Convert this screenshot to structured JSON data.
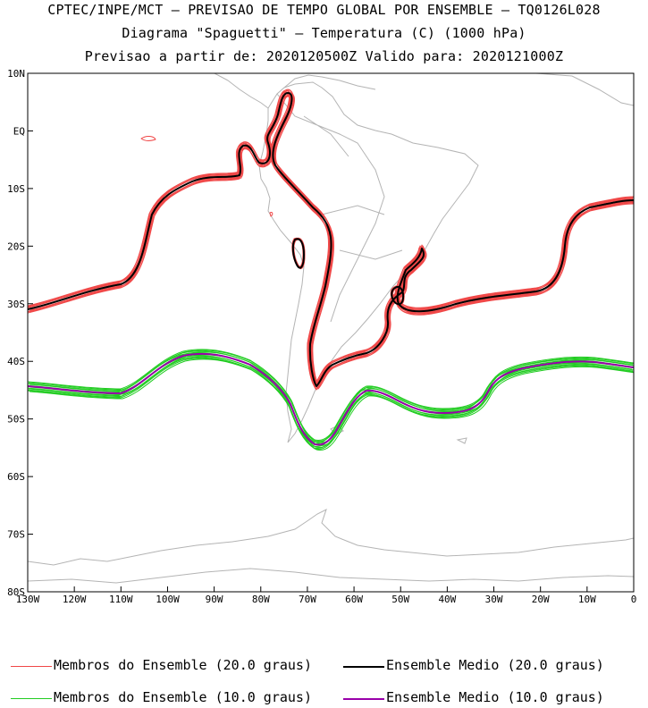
{
  "header": {
    "line1": "CPTEC/INPE/MCT – PREVISAO DE TEMPO GLOBAL POR ENSEMBLE – TQ0126L028",
    "line2": "Diagrama \"Spaguetti\" – Temperatura (C) (1000 hPa)",
    "line3": "Previsao a partir de: 2020120500Z  Valido para: 2020121000Z"
  },
  "map": {
    "lon_range": [
      -130,
      0
    ],
    "lat_range": [
      -80,
      10
    ],
    "lat_ticks": [
      "10N",
      "EQ",
      "10S",
      "20S",
      "30S",
      "40S",
      "50S",
      "60S",
      "70S",
      "80S"
    ],
    "lon_ticks": [
      "130W",
      "120W",
      "110W",
      "100W",
      "90W",
      "80W",
      "70W",
      "60W",
      "50W",
      "40W",
      "30W",
      "20W",
      "10W",
      "0"
    ],
    "colors": {
      "member_20": "#f04848",
      "mean_20": "#000000",
      "member_10": "#22cc22",
      "mean_10": "#9900aa",
      "coast": "#b4b4b4"
    }
  },
  "legend": {
    "member_20_label": "Membros do Ensemble (20.0 graus)",
    "mean_20_label": "Ensemble Medio (20.0 graus)",
    "member_10_label": "Membros do Ensemble (10.0 graus)",
    "mean_10_label": "Ensemble Medio (10.0 graus)"
  }
}
